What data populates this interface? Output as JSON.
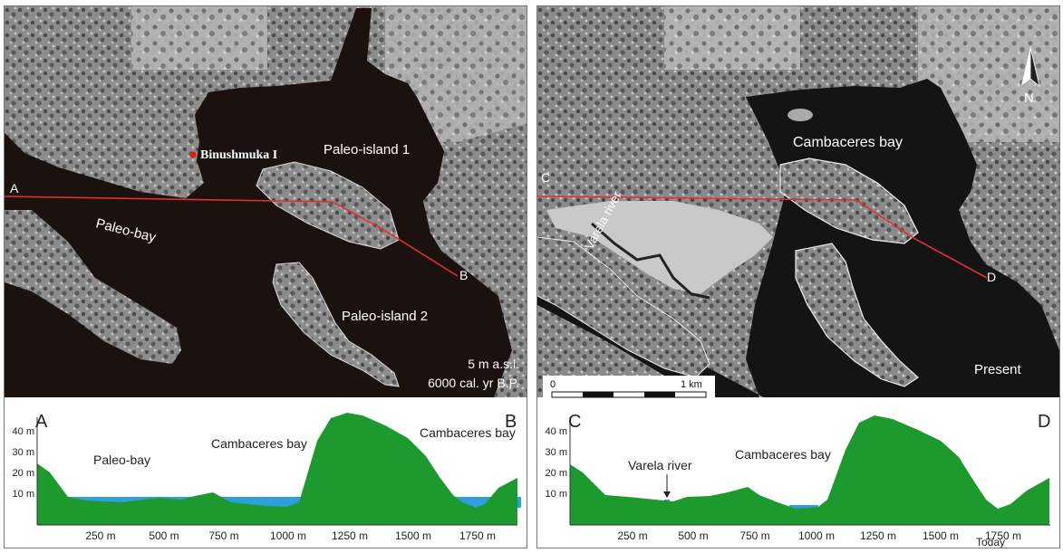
{
  "left_panel": {
    "section_a": "A",
    "section_b": "B",
    "site_label": "Binushmuka I",
    "bay_label": "Paleo-bay",
    "island1_label": "Paleo-island 1",
    "island2_label": "Paleo-island 2",
    "elevation_note": "5 m a.s.l.",
    "age_note": "6000 cal. yr B.P.",
    "profile": {
      "start": "A",
      "end": "B",
      "water_label": "Paleo-bay",
      "bay_label": "Cambaceres bay",
      "bay_label_right": "Cambaceres bay"
    }
  },
  "right_panel": {
    "section_c": "C",
    "section_d": "D",
    "bay_label": "Cambaceres bay",
    "river_label": "Varela river",
    "present_label": "Present",
    "north_label": "N",
    "scalebar": {
      "start": "0",
      "end": "1 km"
    },
    "profile": {
      "start": "C",
      "end": "D",
      "river_label": "Varela river",
      "bay_label": "Cambaceres bay",
      "today_label": "Today"
    }
  },
  "profile_axes": {
    "y_ticks": [
      "10 m",
      "20 m",
      "30 m",
      "40 m"
    ],
    "x_ticks": [
      "250 m",
      "500 m",
      "750 m",
      "1000 m",
      "1250 m",
      "1500 m",
      "1750 m"
    ]
  },
  "colors": {
    "land": "#1d9a2e",
    "water": "#2f9fdc",
    "paleo_sea": "#1b1210",
    "profile_line": "#e03030",
    "site_marker": "#e01818"
  }
}
